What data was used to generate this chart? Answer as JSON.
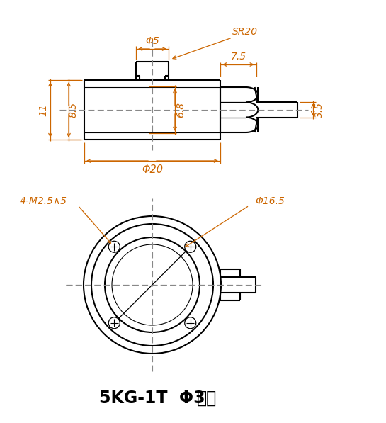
{
  "title_bold": "5KG-1T Φ3",
  "title_suffix": "出线",
  "dim_color": "#cc6600",
  "line_color": "#000000",
  "bg_color": "#ffffff",
  "ann_phi5": "Φ5",
  "ann_SR20": "SR20",
  "ann_phi20": "Φ20",
  "ann_phi165": "Φ16.5",
  "ann_11": "11",
  "ann_85": "8.5",
  "ann_68": "6.8",
  "ann_75": "7.5",
  "ann_35": "3.5",
  "ann_holes": "4-M2.5∧5"
}
